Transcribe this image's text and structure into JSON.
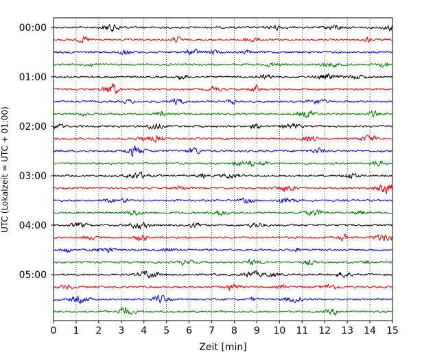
{
  "chart_data": {
    "type": "line",
    "title": "",
    "xlabel": "Zeit  [min]",
    "ylabel": "UTC (Lokalzeit = UTC + 01:00)",
    "xlim": [
      0,
      15
    ],
    "x_ticks": [
      0,
      1,
      2,
      3,
      4,
      5,
      6,
      7,
      8,
      9,
      10,
      11,
      12,
      13,
      14,
      15
    ],
    "x_tick_labels": [
      "0",
      "1",
      "2",
      "3",
      "4",
      "5",
      "6",
      "7",
      "8",
      "9",
      "10",
      "11",
      "12",
      "13",
      "14",
      "15"
    ],
    "y_tick_labels": [
      "00:00",
      "01:00",
      "02:00",
      "03:00",
      "04:00",
      "05:00"
    ],
    "trace_interval_min": 15,
    "trace_count": 24,
    "color_cycle": [
      "#000000",
      "#ff0000",
      "#0000ff",
      "#008000"
    ],
    "grid": "vertical dotted",
    "legend": "none"
  }
}
